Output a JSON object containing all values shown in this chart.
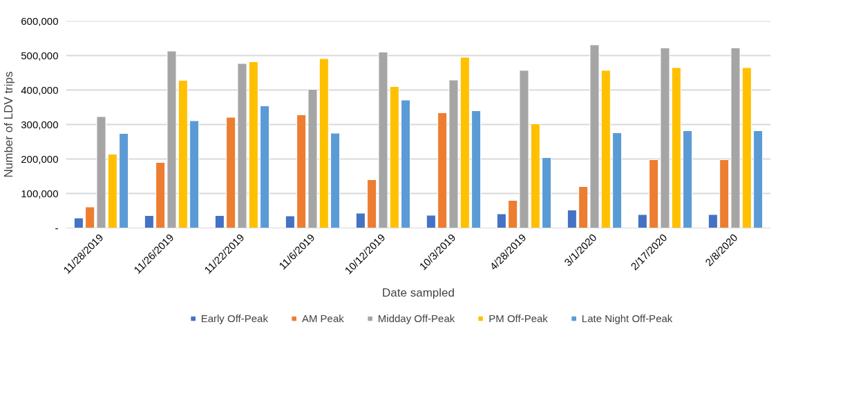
{
  "chart_data": {
    "type": "bar",
    "xlabel": "Date sampled",
    "ylabel": "Number of LDV trips",
    "categories": [
      "11/28/2019",
      "11/26/2019",
      "11/22/2019",
      "11/6/2019",
      "10/12/2019",
      "10/3/2019",
      "4/28/2019",
      "3/1/2020",
      "2/17/2020",
      "2/8/2020"
    ],
    "series": [
      {
        "name": "Early Off-Peak",
        "color": "#4472c4",
        "values": [
          29000,
          36000,
          36000,
          35000,
          43000,
          37000,
          41000,
          52000,
          39000,
          39000
        ]
      },
      {
        "name": "AM Peak",
        "color": "#ed7d31",
        "values": [
          61000,
          190000,
          321000,
          328000,
          140000,
          334000,
          80000,
          120000,
          198000,
          198000
        ]
      },
      {
        "name": "Midday Off-Peak",
        "color": "#a5a5a5",
        "values": [
          323000,
          513000,
          477000,
          402000,
          510000,
          429000,
          457000,
          531000,
          522000,
          522000
        ]
      },
      {
        "name": "PM Off-Peak",
        "color": "#ffc000",
        "values": [
          214000,
          428000,
          482000,
          491000,
          410000,
          495000,
          302000,
          457000,
          465000,
          465000
        ]
      },
      {
        "name": "Late Night Off-Peak",
        "color": "#5b9bd5",
        "values": [
          274000,
          311000,
          354000,
          275000,
          371000,
          340000,
          204000,
          276000,
          282000,
          282000
        ]
      }
    ],
    "ylim": [
      0,
      600000
    ],
    "yticks": [
      {
        "value": 0,
        "label": "-"
      },
      {
        "value": 100000,
        "label": "100,000"
      },
      {
        "value": 200000,
        "label": "200,000"
      },
      {
        "value": 300000,
        "label": "300,000"
      },
      {
        "value": 400000,
        "label": "400,000"
      },
      {
        "value": 500000,
        "label": "500,000"
      },
      {
        "value": 600000,
        "label": "600,000"
      }
    ],
    "grid": "y",
    "legend": "bottom"
  }
}
